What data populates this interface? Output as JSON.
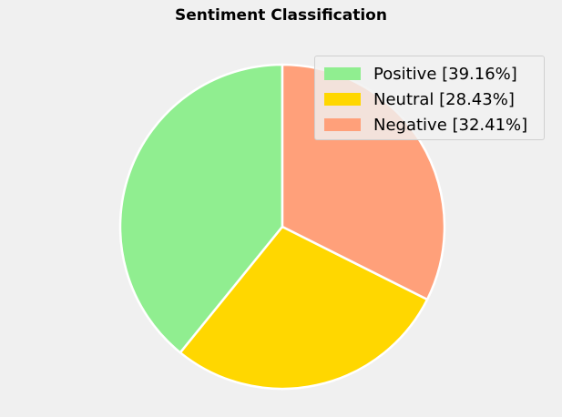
{
  "chart_data": {
    "type": "pie",
    "title": "Sentiment Classification",
    "slices": [
      {
        "label": "Positive",
        "value": 39.16,
        "legend": "Positive [39.16%]",
        "color": "#90ee90"
      },
      {
        "label": "Neutral",
        "value": 28.43,
        "legend": "Neutral [28.43%]",
        "color": "#ffd700"
      },
      {
        "label": "Negative",
        "value": 32.41,
        "legend": "Negative [32.41%]",
        "color": "#ffa07a"
      }
    ],
    "start_angle_deg": 90,
    "direction": "counterclockwise",
    "edge_color": "#ffffff",
    "legend_placement": "top-right",
    "grid": false
  }
}
